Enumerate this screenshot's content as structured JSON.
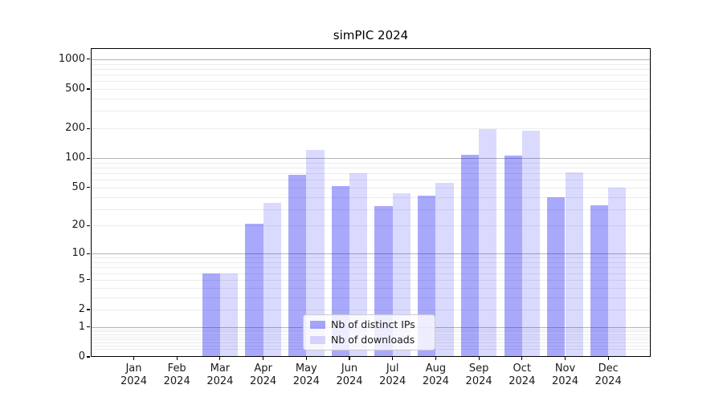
{
  "title": "simPIC 2024",
  "chart_data": {
    "type": "bar",
    "title": "simPIC 2024",
    "scale": "log1p",
    "grid": true,
    "legend_position": "lower-center",
    "year": "2024",
    "categories": [
      "Jan",
      "Feb",
      "Mar",
      "Apr",
      "May",
      "Jun",
      "Jul",
      "Aug",
      "Sep",
      "Oct",
      "Nov",
      "Dec"
    ],
    "series": [
      {
        "name": "Nb of distinct IPs",
        "color": "#a9a9fb",
        "fill": "rgba(10,10,245,0.35)",
        "values": [
          0,
          0,
          6,
          21,
          68,
          52,
          32,
          41,
          109,
          107,
          40,
          33
        ]
      },
      {
        "name": "Nb of downloads",
        "color": "#dadafd",
        "fill": "rgba(10,10,245,0.15)",
        "values": [
          0,
          0,
          6,
          35,
          120,
          70,
          44,
          56,
          196,
          188,
          72,
          50
        ]
      }
    ],
    "y_ticks": [
      0,
      1,
      2,
      5,
      10,
      20,
      50,
      100,
      200,
      500,
      1000
    ],
    "ylim": [
      0,
      1300
    ],
    "colors": {
      "major_grid": "#b4b4b4",
      "minor_grid": "#ececec",
      "axis": "#000000",
      "text": "#1a1a1a"
    }
  }
}
